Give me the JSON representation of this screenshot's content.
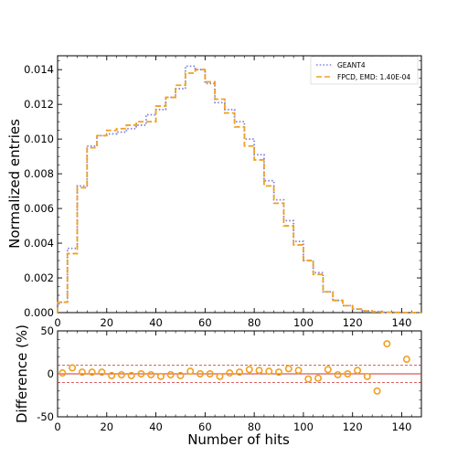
{
  "chart_data": [
    {
      "type": "step",
      "xlabel": "",
      "ylabel": "Normalized entries",
      "xlim": [
        0,
        148
      ],
      "ylim": [
        0,
        0.0148
      ],
      "xticks": [
        0,
        20,
        40,
        60,
        80,
        100,
        120,
        140
      ],
      "yticks": [
        0.0,
        0.002,
        0.004,
        0.006,
        0.008,
        0.01,
        0.012,
        0.014
      ],
      "ytick_labels": [
        "0.000",
        "0.002",
        "0.004",
        "0.006",
        "0.008",
        "0.010",
        "0.012",
        "0.014"
      ],
      "bin_edges": [
        0,
        4,
        8,
        12,
        16,
        20,
        24,
        28,
        32,
        36,
        40,
        44,
        48,
        52,
        56,
        60,
        64,
        68,
        72,
        76,
        80,
        84,
        88,
        92,
        96,
        100,
        104,
        108,
        112,
        116,
        120,
        124,
        128,
        132,
        136,
        140,
        144,
        148
      ],
      "legend_position": "top-right",
      "series": [
        {
          "name": "GEANT4",
          "color": "#8080e0",
          "style": "dotted",
          "values": [
            0.0006,
            0.0037,
            0.0073,
            0.0096,
            0.0102,
            0.0103,
            0.0104,
            0.0106,
            0.0108,
            0.0114,
            0.0117,
            0.0124,
            0.0129,
            0.0142,
            0.014,
            0.0132,
            0.0121,
            0.0117,
            0.011,
            0.01,
            0.0091,
            0.0076,
            0.0065,
            0.0053,
            0.0041,
            0.003,
            0.0023,
            0.0012,
            0.0007,
            0.0004,
            0.0002,
            0.0001,
            5e-05,
            2e-05,
            1e-05,
            0.0,
            0.0
          ]
        },
        {
          "name": "FPCD, EMD: 1.40E-04",
          "color": "#f0a020",
          "style": "dashed",
          "values": [
            0.0006,
            0.0034,
            0.0072,
            0.0095,
            0.0102,
            0.0105,
            0.0106,
            0.0108,
            0.011,
            0.011,
            0.0119,
            0.0124,
            0.0131,
            0.0138,
            0.014,
            0.0133,
            0.0123,
            0.0115,
            0.0107,
            0.0096,
            0.0088,
            0.0073,
            0.0063,
            0.005,
            0.0039,
            0.003,
            0.0022,
            0.0012,
            0.0007,
            0.0004,
            0.0002,
            0.0001,
            5e-05,
            2e-05,
            1e-05,
            0.0,
            0.0
          ]
        }
      ]
    },
    {
      "type": "scatter",
      "xlabel": "Number of hits",
      "ylabel": "Difference (%)",
      "xlim": [
        0,
        148
      ],
      "ylim": [
        -50,
        50
      ],
      "xticks": [
        0,
        20,
        40,
        60,
        80,
        100,
        120,
        140
      ],
      "yticks": [
        -50,
        0,
        50
      ],
      "reference_lines": [
        {
          "y": 0,
          "color": "#d03030",
          "style": "solid"
        },
        {
          "y": 10,
          "color": "#d03030",
          "style": "dashed"
        },
        {
          "y": -10,
          "color": "#d03030",
          "style": "dashed"
        }
      ],
      "series": [
        {
          "color": "#f0a020",
          "marker": "circle-open",
          "x": [
            2,
            6,
            10,
            14,
            18,
            22,
            26,
            30,
            34,
            38,
            42,
            46,
            50,
            54,
            58,
            62,
            66,
            70,
            74,
            78,
            82,
            86,
            90,
            94,
            98,
            102,
            106,
            110,
            114,
            118,
            122,
            126,
            130,
            134,
            142
          ],
          "y": [
            1,
            7,
            2,
            2,
            2,
            -2,
            -1,
            -2,
            0,
            -1,
            -3,
            -1,
            -2,
            3,
            0,
            0,
            -3,
            1,
            2,
            5,
            4,
            3,
            2,
            6,
            4,
            -6,
            -5,
            5,
            -1,
            0,
            4,
            -3,
            -20,
            35,
            17
          ]
        }
      ]
    }
  ]
}
